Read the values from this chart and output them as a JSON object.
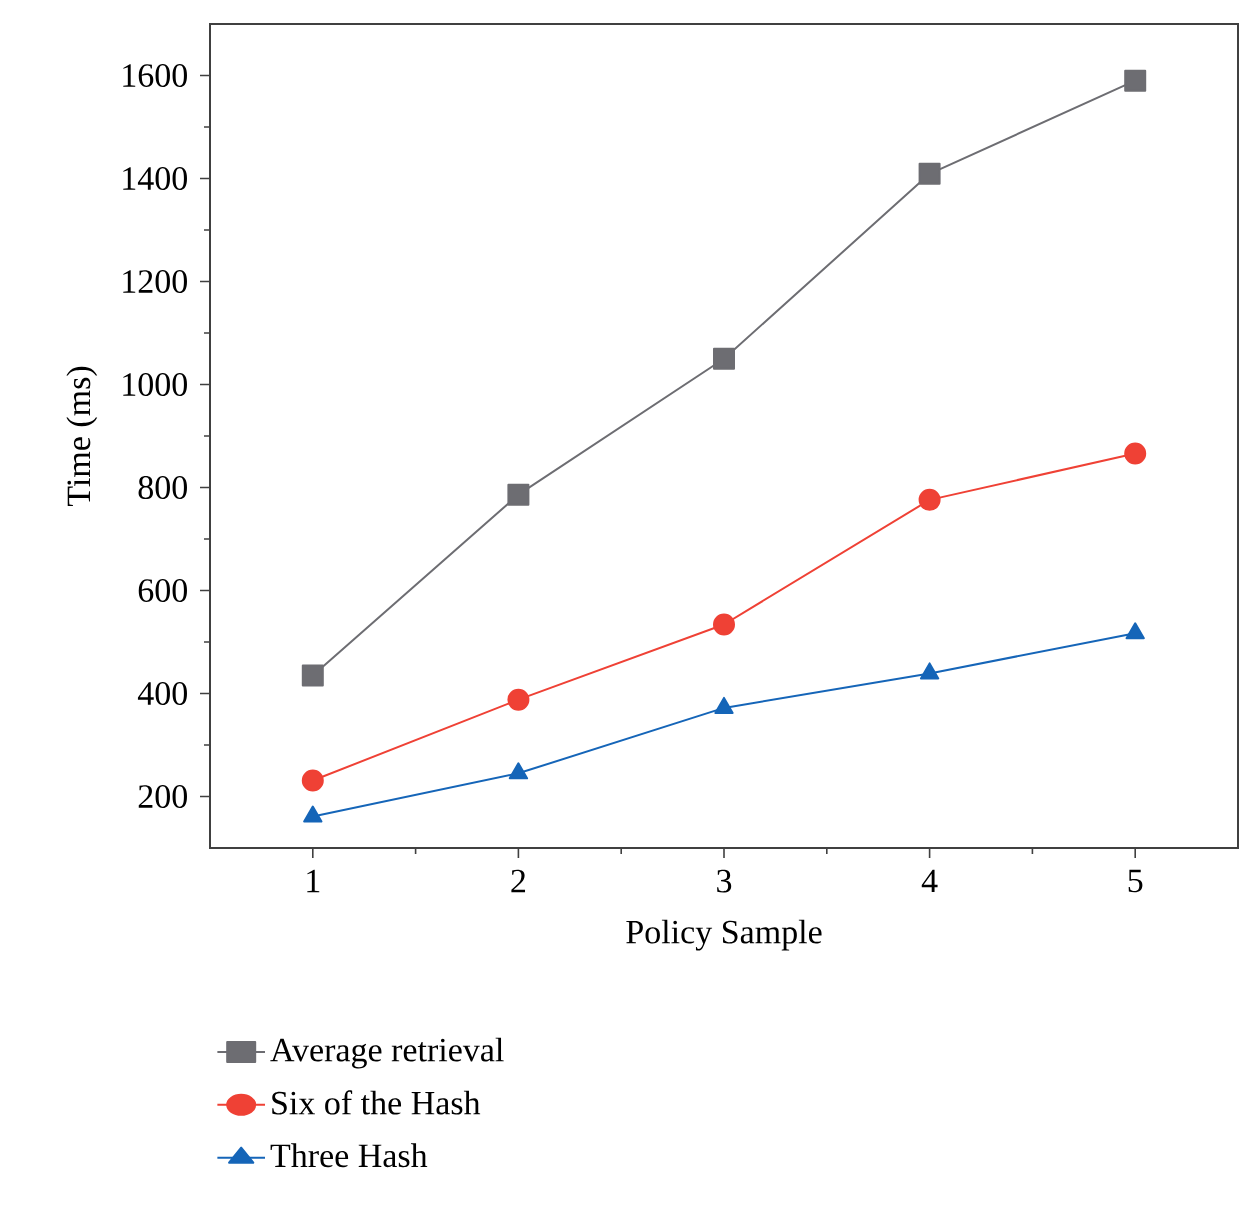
{
  "chart_data": {
    "type": "line",
    "xlabel": "Policy Sample",
    "ylabel": "Time (ms)",
    "x": [
      1,
      2,
      3,
      4,
      5
    ],
    "xlim": [
      0.5,
      5.5
    ],
    "xticks": [
      1,
      2,
      3,
      4,
      5
    ],
    "ylim": [
      100,
      1700
    ],
    "yticks": [
      200,
      400,
      600,
      800,
      1000,
      1200,
      1400,
      1600
    ],
    "legend": "bottom",
    "grid": false,
    "series": [
      {
        "name": "Average retrieval",
        "color": "#6d6d72",
        "marker": "square",
        "values": [
          435,
          786,
          1050,
          1409,
          1590
        ]
      },
      {
        "name": "Six of the Hash",
        "color": "#ef4135",
        "marker": "circle",
        "values": [
          231,
          388,
          534,
          776,
          866
        ]
      },
      {
        "name": "Three Hash",
        "color": "#1565b8",
        "marker": "triangle",
        "values": [
          161,
          245,
          372,
          439,
          517
        ]
      }
    ]
  }
}
